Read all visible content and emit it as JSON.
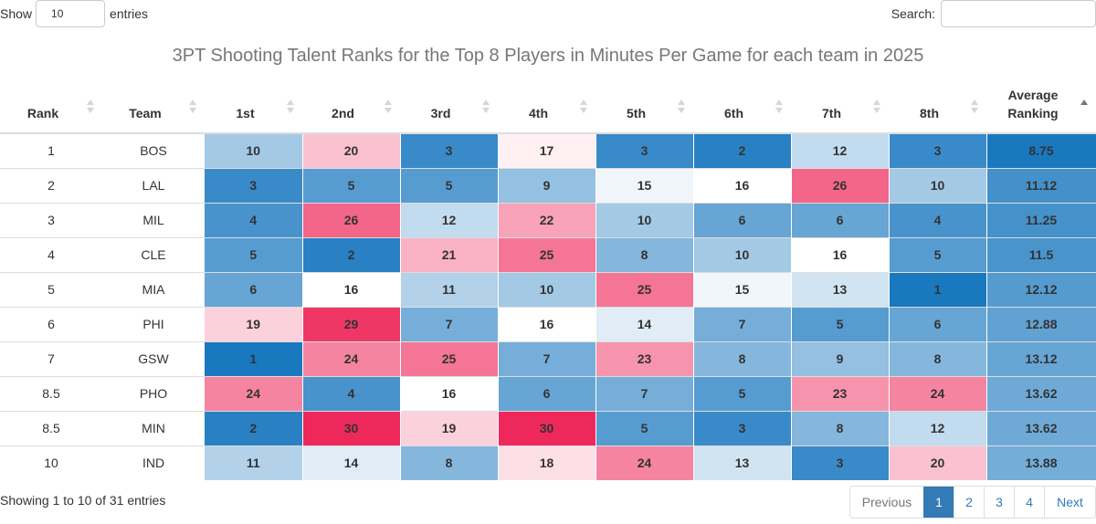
{
  "length": {
    "show_label": "Show",
    "value": "10",
    "entries_label": "entries"
  },
  "search": {
    "label": "Search:",
    "value": ""
  },
  "caption": "3PT Shooting Talent Ranks for the Top 8 Players in Minutes Per Game for each team in 2025",
  "table": {
    "columns": [
      "Rank",
      "Team",
      "1st",
      "2nd",
      "3rd",
      "4th",
      "5th",
      "6th",
      "7th",
      "8th",
      "Average\nRanking"
    ],
    "sorted_column": "Average Ranking",
    "sort_direction": "ascending",
    "rows": [
      {
        "rank": "1",
        "team": "BOS",
        "players": [
          "10",
          "20",
          "3",
          "17",
          "3",
          "2",
          "12",
          "3"
        ],
        "avg": "8.75"
      },
      {
        "rank": "2",
        "team": "LAL",
        "players": [
          "3",
          "5",
          "5",
          "9",
          "15",
          "16",
          "26",
          "10"
        ],
        "avg": "11.12"
      },
      {
        "rank": "3",
        "team": "MIL",
        "players": [
          "4",
          "26",
          "12",
          "22",
          "10",
          "6",
          "6",
          "4"
        ],
        "avg": "11.25"
      },
      {
        "rank": "4",
        "team": "CLE",
        "players": [
          "5",
          "2",
          "21",
          "25",
          "8",
          "10",
          "16",
          "5"
        ],
        "avg": "11.5"
      },
      {
        "rank": "5",
        "team": "MIA",
        "players": [
          "6",
          "16",
          "11",
          "10",
          "25",
          "15",
          "13",
          "1"
        ],
        "avg": "12.12"
      },
      {
        "rank": "6",
        "team": "PHI",
        "players": [
          "19",
          "29",
          "7",
          "16",
          "14",
          "7",
          "5",
          "6"
        ],
        "avg": "12.88"
      },
      {
        "rank": "7",
        "team": "GSW",
        "players": [
          "1",
          "24",
          "25",
          "7",
          "23",
          "8",
          "9",
          "8"
        ],
        "avg": "13.12"
      },
      {
        "rank": "8.5",
        "team": "PHO",
        "players": [
          "24",
          "4",
          "16",
          "6",
          "7",
          "5",
          "23",
          "24"
        ],
        "avg": "13.62"
      },
      {
        "rank": "8.5",
        "team": "MIN",
        "players": [
          "2",
          "30",
          "19",
          "30",
          "5",
          "3",
          "8",
          "12"
        ],
        "avg": "13.62"
      },
      {
        "rank": "10",
        "team": "IND",
        "players": [
          "11",
          "14",
          "8",
          "18",
          "24",
          "13",
          "3",
          "20"
        ],
        "avg": "13.88"
      }
    ]
  },
  "info": "Showing 1 to 10 of 31 entries",
  "pagination": {
    "previous": "Previous",
    "pages": [
      "1",
      "2",
      "3",
      "4"
    ],
    "current_page": "1",
    "next": "Next"
  },
  "colors": {
    "best": "#1a78bf",
    "neutral": "#ffffff",
    "worst": "#ee285a",
    "pagination_active": "#337ab7",
    "caption": "#777777"
  },
  "color_scale": {
    "best_rank": 1,
    "neutral_rank": 16,
    "worst_rank": 30,
    "avg_best": 8.75,
    "avg_worst": 16
  }
}
